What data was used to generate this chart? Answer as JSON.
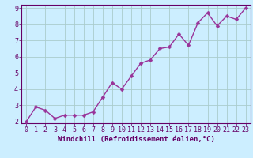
{
  "x_values": [
    0,
    1,
    2,
    3,
    4,
    5,
    6,
    7,
    8,
    9,
    10,
    11,
    12,
    13,
    14,
    15,
    16,
    17,
    18,
    19,
    20,
    21,
    22,
    23
  ],
  "y_values": [
    2.0,
    2.9,
    2.7,
    2.2,
    2.4,
    2.4,
    2.4,
    2.6,
    3.5,
    4.4,
    4.0,
    4.8,
    5.6,
    5.8,
    6.5,
    6.6,
    7.4,
    6.7,
    8.1,
    8.7,
    7.9,
    8.5,
    8.3,
    9.0
  ],
  "line_color": "#993399",
  "marker_color": "#993399",
  "bg_color": "#cceeff",
  "grid_color": "#aacccc",
  "xlabel": "Windchill (Refroidissement éolien,°C)",
  "ylabel": "",
  "ylim_min": 2.0,
  "ylim_max": 9.0,
  "xlim_min": -0.5,
  "xlim_max": 23.5,
  "yticks": [
    2,
    3,
    4,
    5,
    6,
    7,
    8,
    9
  ],
  "xticks": [
    0,
    1,
    2,
    3,
    4,
    5,
    6,
    7,
    8,
    9,
    10,
    11,
    12,
    13,
    14,
    15,
    16,
    17,
    18,
    19,
    20,
    21,
    22,
    23
  ],
  "font_color": "#660066",
  "axis_label_fontsize": 6.5,
  "tick_fontsize": 6.0,
  "line_width": 1.0,
  "marker_size": 2.5
}
